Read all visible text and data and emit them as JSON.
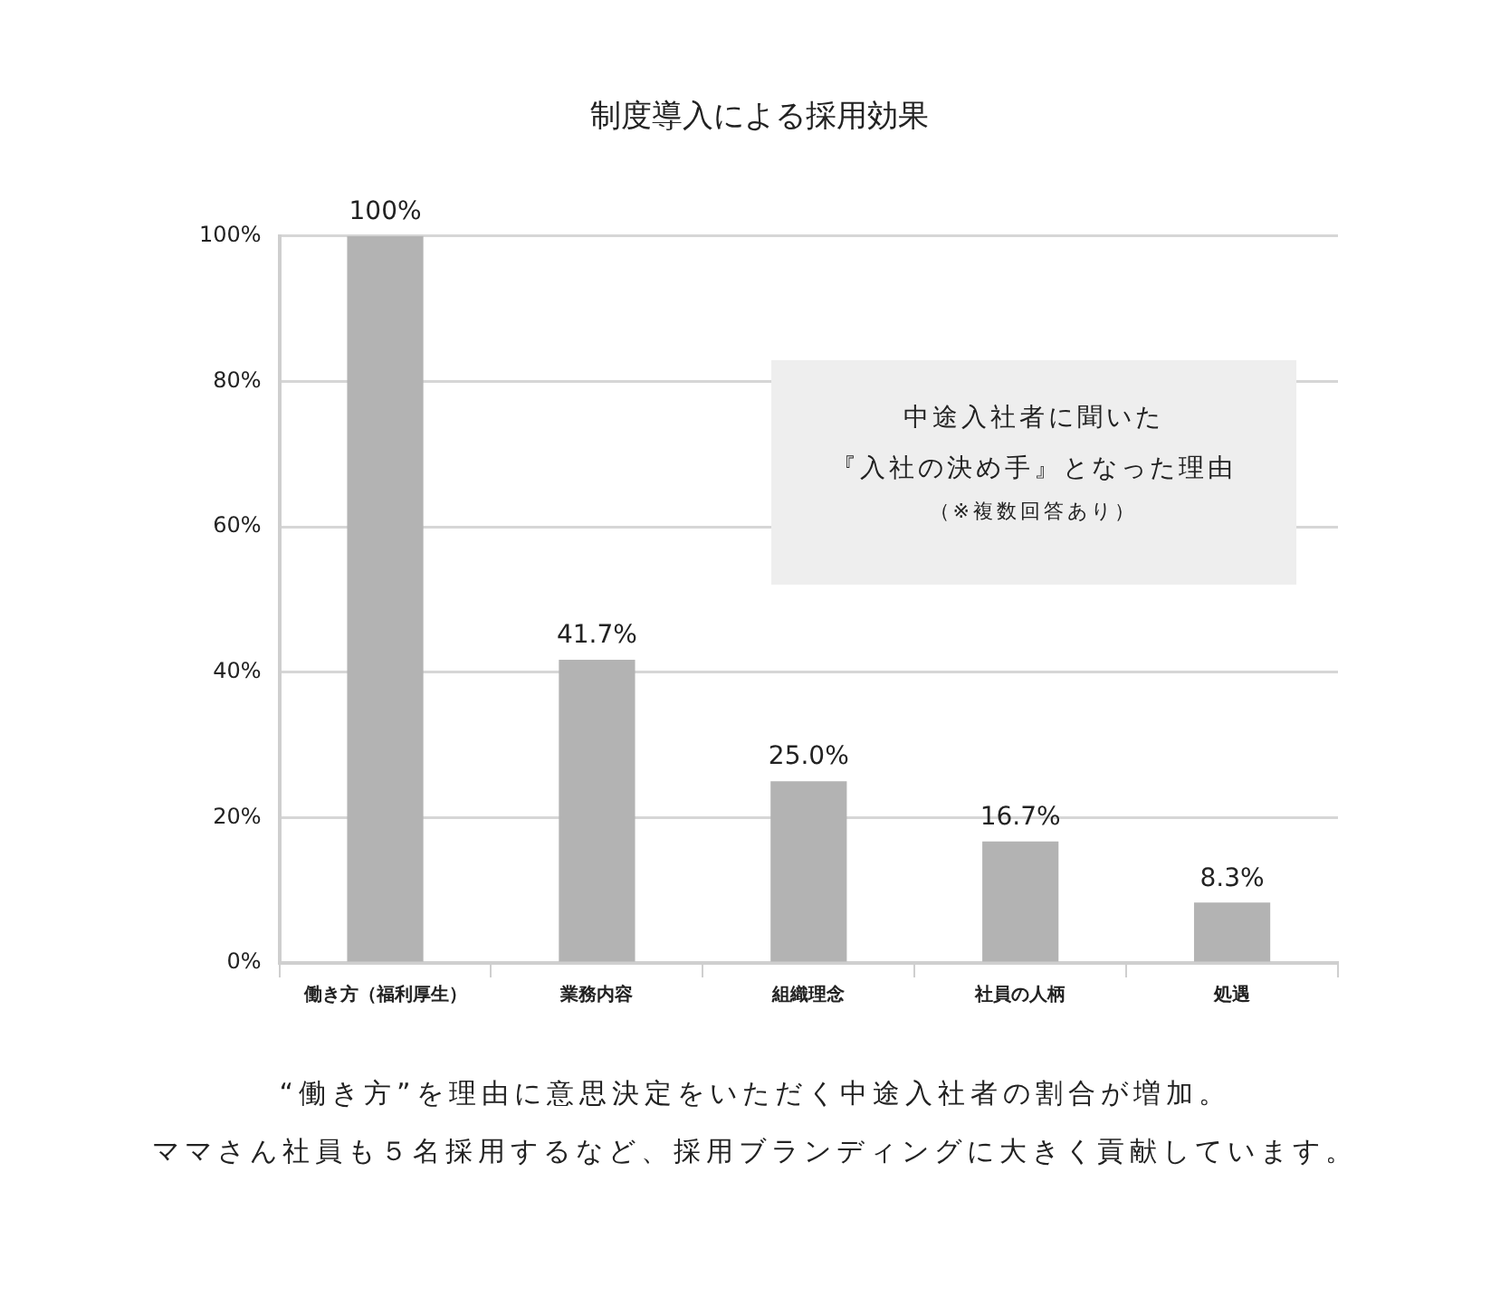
{
  "chart_data": {
    "type": "bar",
    "title": "制度導入による採用効果",
    "categories": [
      "働き方（福利厚生）",
      "業務内容",
      "組織理念",
      "社員の人柄",
      "処遇"
    ],
    "values": [
      100,
      41.7,
      25.0,
      16.7,
      8.3
    ],
    "value_labels": [
      "100%",
      "41.7%",
      "25.0%",
      "16.7%",
      "8.3%"
    ],
    "color": "#b3b3b3",
    "ylim": [
      0,
      100
    ],
    "yticks": [
      {
        "value": 0,
        "label": "0%"
      },
      {
        "value": 20,
        "label": "20%"
      },
      {
        "value": 40,
        "label": "40%"
      },
      {
        "value": 60,
        "label": "60%"
      },
      {
        "value": 80,
        "label": "80%"
      },
      {
        "value": 100,
        "label": "100%"
      }
    ],
    "grid": "y",
    "legend": false,
    "annotations": [
      "中途入社者に聞いた",
      "『入社の決め手』となった理由",
      "（※複数回答あり）",
      "“働き方”を理由に意思決定をいただく中途入社者の割合が増加。",
      "ママさん社員も５名採用するなど、採用ブランディングに大きく貢献しています。"
    ]
  }
}
